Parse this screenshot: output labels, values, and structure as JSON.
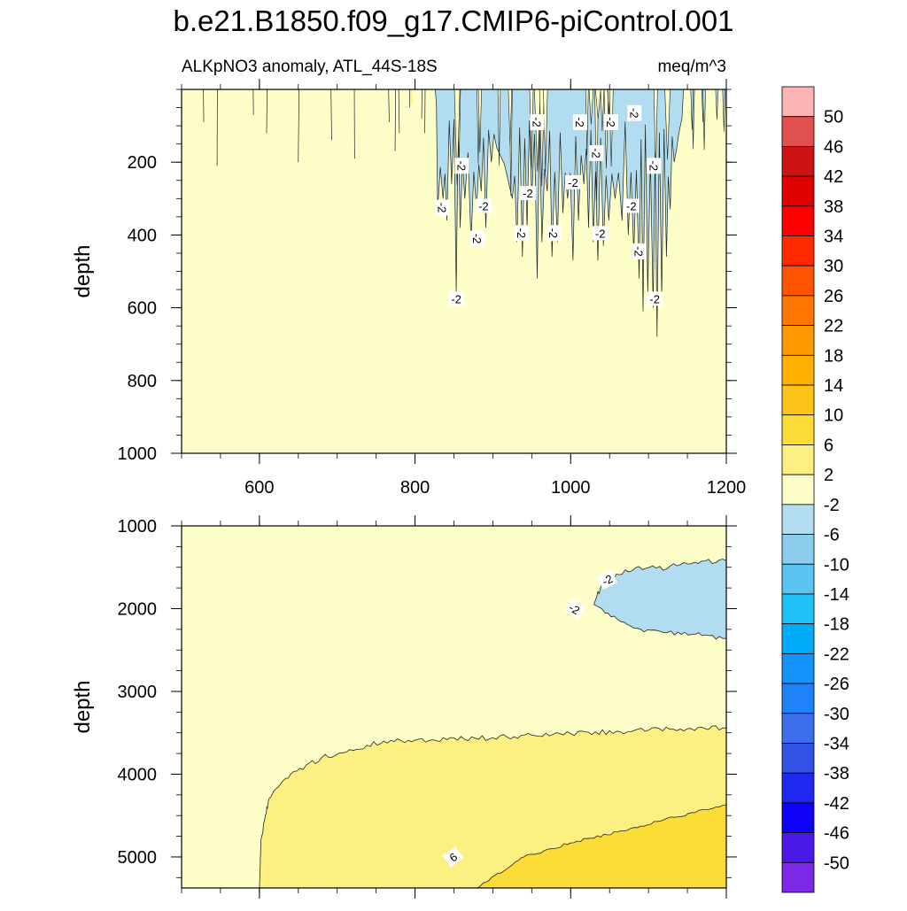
{
  "title": "b.e21.B1850.f09_g17.CMIP6-piControl.001",
  "chart_data": {
    "type": "contour",
    "panels": [
      {
        "id": "upper",
        "subtitle_left": "ALKpNO3 anomaly, ATL_44S-18S",
        "subtitle_right": "meq/m^3",
        "ylabel": "depth",
        "xlim": [
          500,
          1200
        ],
        "ylim": [
          0,
          1000
        ],
        "xticks": [
          600,
          800,
          1000,
          1200
        ],
        "yticks": [
          200,
          400,
          600,
          800,
          1000
        ],
        "contour_labels": [
          {
            "text": "-2",
            "x": 853,
            "y": 575
          },
          {
            "text": "-2",
            "x": 835,
            "y": 325
          },
          {
            "text": "-2",
            "x": 860,
            "y": 210
          },
          {
            "text": "-2",
            "x": 888,
            "y": 320
          },
          {
            "text": "-2",
            "x": 880,
            "y": 410
          },
          {
            "text": "-2",
            "x": 957,
            "y": 90
          },
          {
            "text": "-2",
            "x": 945,
            "y": 285
          },
          {
            "text": "-2",
            "x": 937,
            "y": 395
          },
          {
            "text": "-2",
            "x": 978,
            "y": 395
          },
          {
            "text": "-2",
            "x": 1003,
            "y": 255
          },
          {
            "text": "-2",
            "x": 1012,
            "y": 90
          },
          {
            "text": "-2",
            "x": 1033,
            "y": 175
          },
          {
            "text": "-2",
            "x": 1038,
            "y": 395
          },
          {
            "text": "-2",
            "x": 1052,
            "y": 90
          },
          {
            "text": "-2",
            "x": 1082,
            "y": 65
          },
          {
            "text": "-2",
            "x": 1078,
            "y": 320
          },
          {
            "text": "-2",
            "x": 1088,
            "y": 445
          },
          {
            "text": "-2",
            "x": 1107,
            "y": 210
          },
          {
            "text": "-2",
            "x": 1108,
            "y": 575
          }
        ]
      },
      {
        "id": "lower",
        "ylabel": "depth",
        "xlim": [
          500,
          1200
        ],
        "ylim": [
          1000,
          5375
        ],
        "yticks": [
          1000,
          2000,
          3000,
          4000,
          5000
        ],
        "contour_labels": [
          {
            "text": "-2",
            "x": 1047,
            "y": 1650
          },
          {
            "text": "-2",
            "x": 1005,
            "y": 2000
          },
          {
            "text": "6",
            "x": 849,
            "y": 5000
          }
        ]
      }
    ],
    "colorbar": {
      "levels": [
        50,
        46,
        42,
        38,
        34,
        30,
        26,
        22,
        18,
        14,
        10,
        6,
        2,
        -2,
        -6,
        -10,
        -14,
        -18,
        -22,
        -26,
        -30,
        -34,
        -38,
        -42,
        -46,
        -50
      ],
      "colors": [
        "#fcb4b4",
        "#e05050",
        "#cd1414",
        "#e00000",
        "#ff0000",
        "#ff2a00",
        "#ff5500",
        "#ff7700",
        "#ff9900",
        "#ffb000",
        "#fcc419",
        "#fcdc37",
        "#fcf082",
        "#fefec8",
        "#b2dcf0",
        "#8ccced",
        "#5ac3f0",
        "#1ec0f5",
        "#00acf9",
        "#1493fa",
        "#1e82fa",
        "#3c6eeb",
        "#3252e6",
        "#1e28f0",
        "#0f00fa",
        "#4b19e6",
        "#7d28e6"
      ]
    }
  }
}
